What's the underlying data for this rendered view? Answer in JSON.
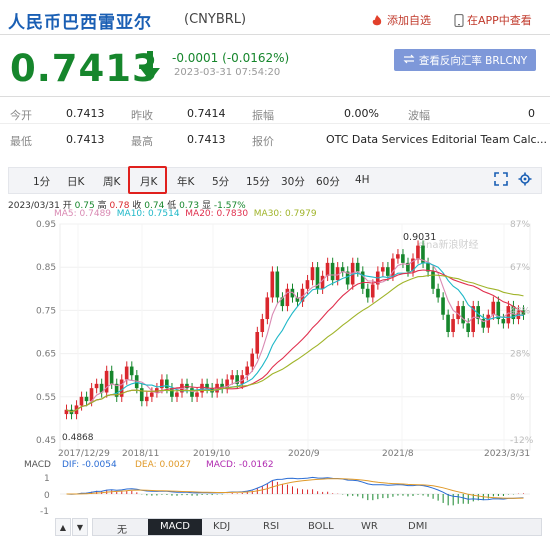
{
  "header": {
    "title": "人民币巴西雷亚尔",
    "code": "(CNYBRL)",
    "add_watch": "添加自选",
    "app_view": "在APP中查看"
  },
  "quote": {
    "price": "0.7413",
    "change": "-0.0001 (-0.0162%)",
    "timestamp": "2023-03-31 07:54:20",
    "reverse_button": "查看反向汇率 BRLCNY"
  },
  "stats": {
    "open_label": "今开",
    "open": "0.7413",
    "prev_label": "昨收",
    "prev": "0.7414",
    "amp_label": "振幅",
    "amp": "0.00%",
    "wave_label": "波幅",
    "wave": "0",
    "low_label": "最低",
    "low": "0.7413",
    "high_label": "最高",
    "high": "0.7413",
    "quote_label": "报价",
    "quote": "OTC Data Services Editorial Team Calc..."
  },
  "tabs": [
    "1分",
    "日K",
    "周K",
    "月K",
    "年K",
    "5分",
    "15分",
    "30分",
    "60分",
    "4H"
  ],
  "active_tab": "月K",
  "ohlc_line": {
    "date": "2023/03/31",
    "open_label": "开",
    "open": "0.75",
    "high_label": "高",
    "high": "0.78",
    "close_label": "收",
    "close": "0.74",
    "low_label": "低",
    "low": "0.73",
    "chg_label": "显",
    "chg": "-1.57%"
  },
  "ma_line": {
    "ma5": "MA5: 0.7489",
    "ma10": "MA10: 0.7514",
    "ma20": "MA20: 0.7830",
    "ma30": "MA30: 0.7979"
  },
  "chart_data": {
    "type": "candlestick",
    "y_ticks": [
      "0.95",
      "0.85",
      "0.75",
      "0.65",
      "0.55",
      "0.45"
    ],
    "pct_ticks": [
      "87%",
      "67%",
      "48%",
      "28%",
      "8%",
      "-12%"
    ],
    "x_ticks": [
      "2017/12/29",
      "2018/11",
      "2019/10",
      "2020/9",
      "2021/8",
      "2023/3/31"
    ],
    "ylim": [
      0.45,
      0.95
    ],
    "max_label": "0.9031",
    "min_label": "0.4868",
    "watermark": "sina新浪财经",
    "closes": [
      0.52,
      0.51,
      0.53,
      0.55,
      0.54,
      0.57,
      0.58,
      0.56,
      0.61,
      0.58,
      0.55,
      0.59,
      0.62,
      0.6,
      0.57,
      0.54,
      0.55,
      0.56,
      0.57,
      0.59,
      0.57,
      0.55,
      0.56,
      0.58,
      0.57,
      0.55,
      0.56,
      0.58,
      0.57,
      0.56,
      0.58,
      0.57,
      0.59,
      0.6,
      0.58,
      0.6,
      0.62,
      0.65,
      0.7,
      0.73,
      0.78,
      0.84,
      0.78,
      0.76,
      0.8,
      0.78,
      0.77,
      0.8,
      0.82,
      0.85,
      0.8,
      0.83,
      0.86,
      0.82,
      0.85,
      0.84,
      0.81,
      0.86,
      0.84,
      0.8,
      0.78,
      0.81,
      0.84,
      0.85,
      0.83,
      0.87,
      0.88,
      0.86,
      0.84,
      0.87,
      0.9,
      0.86,
      0.84,
      0.8,
      0.78,
      0.74,
      0.7,
      0.73,
      0.76,
      0.72,
      0.7,
      0.76,
      0.73,
      0.71,
      0.74,
      0.77,
      0.73,
      0.72,
      0.76,
      0.73,
      0.75,
      0.74
    ],
    "ma_series": [
      "MA5",
      "MA10",
      "MA20",
      "MA30"
    ],
    "ma_colors": [
      "#d98ab3",
      "#20b8c8",
      "#e0304e",
      "#a0b42a"
    ],
    "macd": {
      "label": "MACD",
      "dif": "DIF: -0.0054",
      "dea": "DEA: 0.0027",
      "macd": "MACD: -0.0162",
      "y_ticks": [
        "1",
        "0",
        "-1"
      ]
    }
  },
  "indicator_tabs": [
    "无",
    "MACD",
    "KDJ",
    "RSI",
    "BOLL",
    "WR",
    "DMI"
  ],
  "active_indicator": "MACD",
  "colors": {
    "up": "#d9272d",
    "down": "#16862c",
    "accent": "#1a5fb4"
  }
}
